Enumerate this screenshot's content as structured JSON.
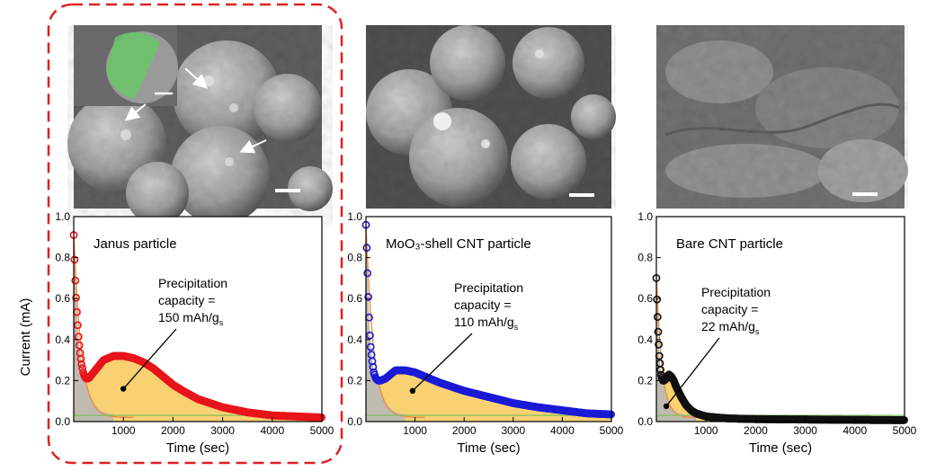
{
  "highlight": {
    "color": "#e02020",
    "style": "dashed"
  },
  "micrographs": [
    {
      "name": "janus-particle-sem",
      "description": "SEM micrograph of Janus particles with inset; arrows point to particle features"
    },
    {
      "name": "moo3-shell-sem",
      "description": "SEM micrograph of MoO3-shell CNT particles"
    },
    {
      "name": "bare-cnt-sem",
      "description": "SEM micrograph of bare CNT particles"
    }
  ],
  "chart_data": [
    {
      "type": "scatter",
      "title": "Janus particle",
      "annotation": {
        "lines": [
          "Precipitation",
          "capacity =",
          "150 mAh/g"
        ],
        "subscript": "s",
        "value": 150,
        "unit": "mAh/g_s"
      },
      "marker_color": "#e8141b",
      "xlabel": "Time (sec)",
      "ylabel": "Current (mA)",
      "xlim": [
        0,
        5000
      ],
      "ylim": [
        0,
        1.0
      ],
      "xticks": [
        "1000",
        "2000",
        "3000",
        "4000",
        "5000"
      ],
      "yticks": [
        "0.0",
        "0.2",
        "0.4",
        "0.6",
        "0.8",
        "1.0"
      ],
      "series": [
        {
          "name": "current",
          "x": [
            0,
            20,
            40,
            60,
            80,
            100,
            130,
            160,
            200,
            250,
            300,
            400,
            500,
            600,
            800,
            1000,
            1200,
            1400,
            1600,
            1800,
            2000,
            2200,
            2500,
            3000,
            3500,
            4000,
            4500,
            5000
          ],
          "y": [
            0.91,
            0.76,
            0.64,
            0.55,
            0.47,
            0.4,
            0.33,
            0.28,
            0.23,
            0.21,
            0.21,
            0.24,
            0.27,
            0.3,
            0.32,
            0.32,
            0.31,
            0.29,
            0.26,
            0.22,
            0.18,
            0.15,
            0.11,
            0.07,
            0.045,
            0.03,
            0.025,
            0.02
          ]
        }
      ]
    },
    {
      "type": "scatter",
      "title": "MoO₃-shell CNT particle",
      "annotation": {
        "lines": [
          "Precipitation",
          "capacity =",
          "110 mAh/g"
        ],
        "subscript": "s",
        "value": 110,
        "unit": "mAh/g_s"
      },
      "marker_color": "#1a1ad6",
      "xlabel": "Time (sec)",
      "ylabel": "",
      "xlim": [
        0,
        5000
      ],
      "ylim": [
        0,
        1.0
      ],
      "xticks": [
        "1000",
        "2000",
        "3000",
        "4000",
        "5000"
      ],
      "yticks": [
        "0.0",
        "0.2",
        "0.4",
        "0.6",
        "0.8",
        "1.0"
      ],
      "series": [
        {
          "name": "current",
          "x": [
            0,
            20,
            40,
            60,
            80,
            100,
            130,
            160,
            200,
            250,
            300,
            400,
            500,
            600,
            800,
            1000,
            1200,
            1500,
            2000,
            2500,
            3000,
            3500,
            4000,
            4500,
            5000
          ],
          "y": [
            0.96,
            0.82,
            0.66,
            0.53,
            0.42,
            0.35,
            0.29,
            0.24,
            0.21,
            0.2,
            0.2,
            0.21,
            0.23,
            0.25,
            0.25,
            0.24,
            0.22,
            0.19,
            0.15,
            0.12,
            0.09,
            0.07,
            0.055,
            0.04,
            0.035
          ]
        }
      ]
    },
    {
      "type": "scatter",
      "title": "Bare CNT particle",
      "annotation": {
        "lines": [
          "Precipitation",
          "capacity =",
          "22 mAh/g"
        ],
        "subscript": "s",
        "value": 22,
        "unit": "mAh/g_s"
      },
      "marker_color": "#111111",
      "xlabel": "Time (sec)",
      "ylabel": "",
      "xlim": [
        0,
        5000
      ],
      "ylim": [
        0,
        1.0
      ],
      "xticks": [
        "1000",
        "2000",
        "3000",
        "4000",
        "5000"
      ],
      "yticks": [
        "0.0",
        "0.2",
        "0.4",
        "0.6",
        "0.8",
        "1.0"
      ],
      "series": [
        {
          "name": "current",
          "x": [
            0,
            15,
            30,
            45,
            60,
            80,
            100,
            130,
            160,
            200,
            250,
            300,
            350,
            400,
            500,
            600,
            700,
            800,
            1000,
            1200,
            1500,
            2000,
            3000,
            4000,
            5000
          ],
          "y": [
            0.7,
            0.57,
            0.47,
            0.39,
            0.32,
            0.26,
            0.22,
            0.2,
            0.2,
            0.21,
            0.23,
            0.22,
            0.2,
            0.17,
            0.12,
            0.08,
            0.055,
            0.04,
            0.025,
            0.02,
            0.015,
            0.012,
            0.01,
            0.008,
            0.007
          ]
        }
      ]
    }
  ]
}
